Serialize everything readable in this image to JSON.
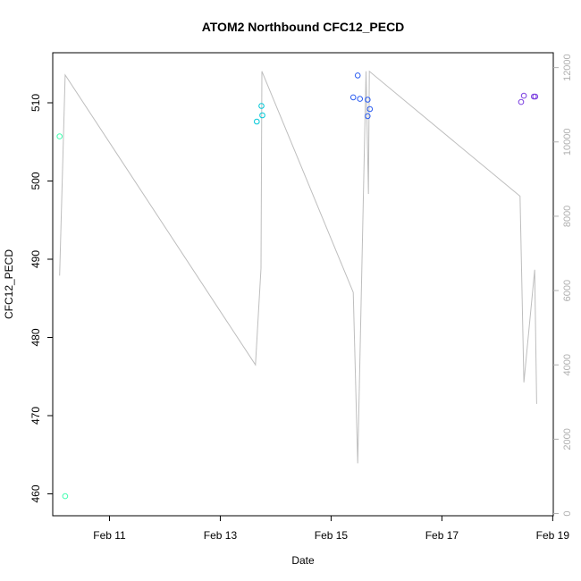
{
  "chart_data": {
    "type": "scatter",
    "title": "ATOM2 Northbound CFC12_PECD",
    "xlabel": "Date",
    "ylabel": "CFC12_PECD",
    "x_ticks": [
      "Feb 11",
      "Feb 13",
      "Feb 15",
      "Feb 17",
      "Feb 19"
    ],
    "xlim": [
      "2024-02-09T23:25",
      "2024-02-19T00:15"
    ],
    "ylim": [
      457.2,
      516.4
    ],
    "y_ticks": [
      460,
      470,
      480,
      490,
      500,
      510
    ],
    "y2lim": [
      -60,
      12400
    ],
    "y2_ticks": [
      0,
      2000,
      4000,
      6000,
      8000,
      10000,
      12000
    ],
    "grid": false,
    "points": [
      {
        "x": "2024-02-10T02:24",
        "y": 505.7,
        "color": "#40ffb0"
      },
      {
        "x": "2024-02-10T04:48",
        "y": 459.7,
        "color": "#40ffb0"
      },
      {
        "x": "2024-02-13T15:50",
        "y": 507.6,
        "color": "#00c8d8"
      },
      {
        "x": "2024-02-13T17:50",
        "y": 509.6,
        "color": "#00c8d8"
      },
      {
        "x": "2024-02-13T18:14",
        "y": 508.4,
        "color": "#00c8d8"
      },
      {
        "x": "2024-02-15T09:36",
        "y": 510.7,
        "color": "#2a5cf0"
      },
      {
        "x": "2024-02-15T11:31",
        "y": 513.5,
        "color": "#2a5cf0"
      },
      {
        "x": "2024-02-15T12:29",
        "y": 510.5,
        "color": "#2a5cf0"
      },
      {
        "x": "2024-02-15T15:50",
        "y": 508.3,
        "color": "#2a5cf0"
      },
      {
        "x": "2024-02-15T15:50",
        "y": 510.4,
        "color": "#2a5cf0"
      },
      {
        "x": "2024-02-15T16:48",
        "y": 509.2,
        "color": "#2a5cf0"
      },
      {
        "x": "2024-02-18T10:19",
        "y": 510.1,
        "color": "#7b3fe0"
      },
      {
        "x": "2024-02-18T11:31",
        "y": 510.9,
        "color": "#7b3fe0"
      },
      {
        "x": "2024-02-18T15:50",
        "y": 510.8,
        "color": "#7b3fe0"
      },
      {
        "x": "2024-02-18T16:26",
        "y": 510.8,
        "color": "#7b3fe0"
      }
    ],
    "line_series": {
      "color": "#bebebe",
      "points": [
        {
          "x": "2024-02-10T02:24",
          "y": 6400
        },
        {
          "x": "2024-02-10T04:48",
          "y": 11800
        },
        {
          "x": "2024-02-13T15:14",
          "y": 4000
        },
        {
          "x": "2024-02-13T17:38",
          "y": 6600
        },
        {
          "x": "2024-02-13T18:02",
          "y": 11900
        },
        {
          "x": "2024-02-15T09:36",
          "y": 5950
        },
        {
          "x": "2024-02-15T11:31",
          "y": 1350
        },
        {
          "x": "2024-02-15T15:07",
          "y": 11900
        },
        {
          "x": "2024-02-15T16:10",
          "y": 8600
        },
        {
          "x": "2024-02-15T16:34",
          "y": 11900
        },
        {
          "x": "2024-02-18T09:50",
          "y": 8540
        },
        {
          "x": "2024-02-18T11:31",
          "y": 3530
        },
        {
          "x": "2024-02-18T16:12",
          "y": 6560
        },
        {
          "x": "2024-02-18T17:02",
          "y": 2950
        }
      ]
    }
  }
}
